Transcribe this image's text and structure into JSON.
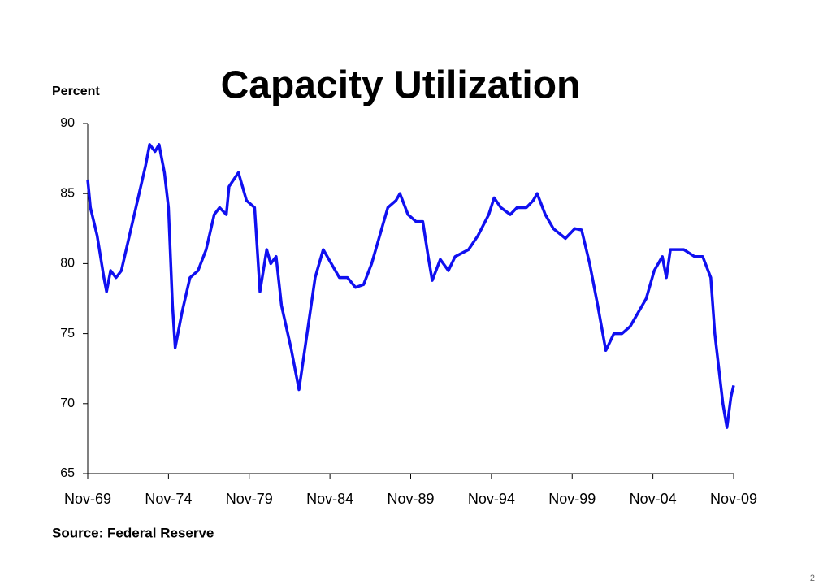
{
  "chart_data": {
    "type": "line",
    "title": "Capacity Utilization",
    "y_label": "Percent",
    "source": "Source: Federal Reserve",
    "page_number": "2",
    "x": [
      "1969-11",
      "1970-01",
      "1970-06",
      "1970-11",
      "1971-01",
      "1971-04",
      "1971-08",
      "1971-12",
      "1972-06",
      "1972-12",
      "1973-06",
      "1973-09",
      "1974-01",
      "1974-04",
      "1974-08",
      "1974-11",
      "1975-02",
      "1975-04",
      "1975-09",
      "1976-03",
      "1976-09",
      "1977-03",
      "1977-09",
      "1978-01",
      "1978-06",
      "1978-08",
      "1979-03",
      "1979-09",
      "1980-03",
      "1980-07",
      "1980-12",
      "1981-03",
      "1981-07",
      "1981-11",
      "1982-06",
      "1982-12",
      "1983-06",
      "1983-12",
      "1984-06",
      "1984-12",
      "1985-06",
      "1985-12",
      "1986-06",
      "1986-12",
      "1987-06",
      "1987-12",
      "1988-06",
      "1988-12",
      "1989-03",
      "1989-09",
      "1990-03",
      "1990-08",
      "1990-12",
      "1991-03",
      "1991-09",
      "1992-03",
      "1992-08",
      "1993-06",
      "1994-01",
      "1994-09",
      "1995-01",
      "1995-06",
      "1996-01",
      "1996-06",
      "1997-01",
      "1997-06",
      "1997-09",
      "1998-03",
      "1998-09",
      "1999-06",
      "2000-01",
      "2000-06",
      "2000-12",
      "2001-06",
      "2001-12",
      "2002-06",
      "2002-12",
      "2003-06",
      "2003-12",
      "2004-06",
      "2004-12",
      "2005-06",
      "2005-09",
      "2005-12",
      "2006-06",
      "2006-10",
      "2007-06",
      "2007-12",
      "2008-06",
      "2008-09",
      "2008-12",
      "2009-03",
      "2009-06",
      "2009-09",
      "2009-11"
    ],
    "series": [
      {
        "name": "Capacity Utilization",
        "color": "#1010f0",
        "values": [
          86,
          84,
          82,
          79,
          78,
          79.5,
          79,
          79.5,
          82,
          84.5,
          87,
          88.5,
          88,
          88.5,
          86.5,
          84,
          77,
          74,
          76.5,
          79,
          79.5,
          81,
          83.5,
          84,
          83.5,
          85.5,
          86.5,
          84.5,
          84,
          78,
          81,
          80,
          80.5,
          77,
          74,
          71,
          75,
          79,
          81,
          80,
          79,
          79,
          78.3,
          78.5,
          80,
          82,
          84,
          84.5,
          85,
          83.5,
          83,
          83,
          80.5,
          78.8,
          80.3,
          79.5,
          80.5,
          81,
          82,
          83.5,
          84.7,
          84,
          83.5,
          84,
          84,
          84.5,
          85,
          83.5,
          82.5,
          81.8,
          82.5,
          82.4,
          80,
          77,
          73.8,
          75,
          75,
          75.5,
          76.5,
          77.5,
          79.5,
          80.5,
          79,
          81,
          81,
          81,
          80.5,
          80.5,
          79,
          75,
          72.5,
          70,
          68.3,
          70.5,
          71.3
        ]
      }
    ],
    "xlim": [
      "1969-11",
      "2009-11"
    ],
    "xticks": [
      {
        "value": "1969-11",
        "label": "Nov-69"
      },
      {
        "value": "1974-11",
        "label": "Nov-74"
      },
      {
        "value": "1979-11",
        "label": "Nov-79"
      },
      {
        "value": "1984-11",
        "label": "Nov-84"
      },
      {
        "value": "1989-11",
        "label": "Nov-89"
      },
      {
        "value": "1994-11",
        "label": "Nov-94"
      },
      {
        "value": "1999-11",
        "label": "Nov-99"
      },
      {
        "value": "2004-11",
        "label": "Nov-04"
      },
      {
        "value": "2009-11",
        "label": "Nov-09"
      }
    ],
    "ylim": [
      65,
      90
    ],
    "yticks": [
      65,
      70,
      75,
      80,
      85,
      90
    ],
    "grid": false
  }
}
